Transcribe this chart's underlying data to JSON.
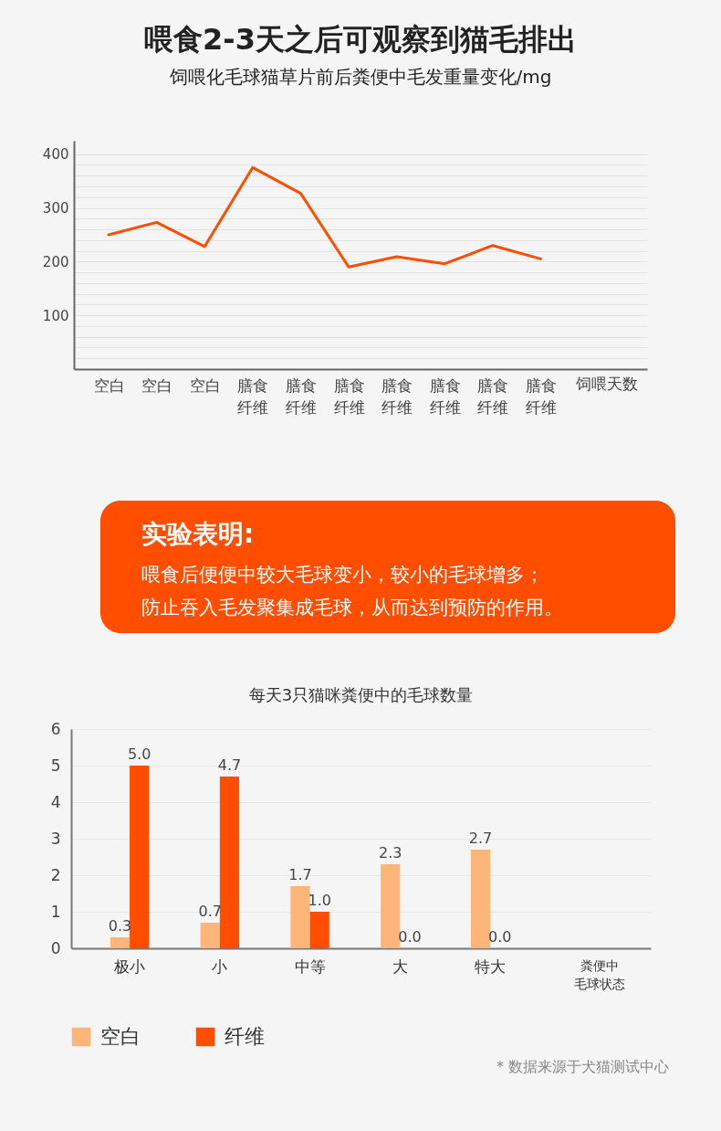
{
  "chart_data": [
    {
      "type": "line",
      "title": "喂食2-3天之后可观察到猫毛排出",
      "subtitle": "饲喂化毛球猫草片前后粪便中毛发重量变化/mg",
      "xlabel": "饲喂天数",
      "categories": [
        "空白",
        "空白",
        "空白",
        "膳食纤维",
        "膳食纤维",
        "膳食纤维",
        "膳食纤维",
        "膳食纤维",
        "膳食纤维",
        "膳食纤维"
      ],
      "series": [
        {
          "color": "#ff4e00",
          "values": [
            250,
            273,
            228,
            375,
            327,
            190,
            209,
            196,
            230,
            205
          ]
        }
      ],
      "ylim": [
        0,
        425
      ],
      "yticks": [
        {
          "value": 20,
          "label": null
        },
        {
          "value": 40,
          "label": null
        },
        {
          "value": 60,
          "label": null
        },
        {
          "value": 80,
          "label": null
        },
        100,
        {
          "value": 120,
          "label": null
        },
        {
          "value": 140,
          "label": null
        },
        {
          "value": 160,
          "label": null
        },
        {
          "value": 180,
          "label": null
        },
        200,
        {
          "value": 220,
          "label": null
        },
        {
          "value": 240,
          "label": null
        },
        {
          "value": 260,
          "label": null
        },
        {
          "value": 280,
          "label": null
        },
        300,
        {
          "value": 320,
          "label": null
        },
        {
          "value": 340,
          "label": null
        },
        {
          "value": 360,
          "label": null
        },
        {
          "value": 380,
          "label": null
        },
        400
      ],
      "grid": true,
      "marker": "none",
      "line_style": "solid"
    },
    {
      "type": "other",
      "title": "实验表明:",
      "color": "#ff4e00",
      "annotations": [
        "喂食后便便中较大毛球变小，较小的毛球增多；",
        "防止吞入毛发聚集成毛球，从而达到预防的作用。"
      ]
    },
    {
      "type": "bar",
      "title": "每天3只猫咪粪便中的毛球数量",
      "xlabel": "粪便中毛球状态",
      "categories": [
        "极小",
        "小",
        "中等",
        "大",
        "特大"
      ],
      "series": [
        {
          "name": "空白",
          "color": "#fdb57a",
          "values": [
            0.3,
            0.7,
            1.7,
            2.3,
            2.7
          ],
          "value_labels": [
            "0.3",
            "0.7",
            "1.7",
            "2.3",
            "2.7"
          ]
        },
        {
          "name": "纤维",
          "color": "#ff4e00",
          "values": [
            5.0,
            4.7,
            1.0,
            0.0,
            0.0
          ],
          "value_labels": [
            "5.0",
            "4.7",
            "1.0",
            "0.0",
            "0.0"
          ]
        }
      ],
      "ylim": [
        0,
        6
      ],
      "yticks": [
        0,
        1,
        2,
        3,
        4,
        5,
        6
      ],
      "grid": "y",
      "legend": "bottom",
      "annotations": [
        "* 数据来源于犬猫测试中心"
      ]
    }
  ]
}
